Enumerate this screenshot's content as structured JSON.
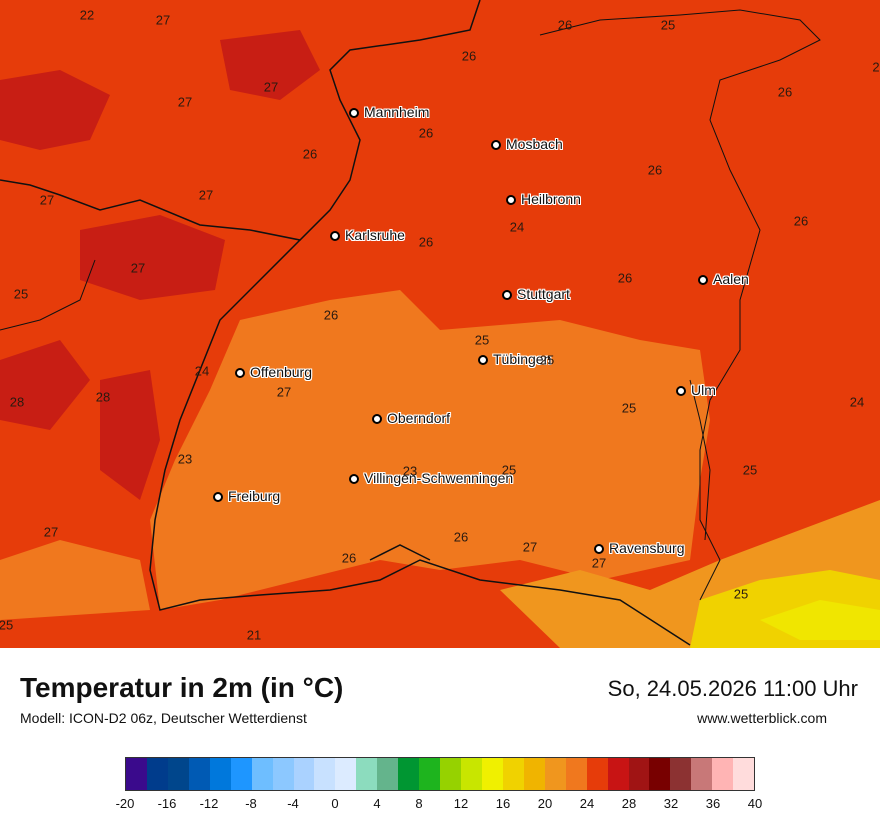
{
  "map": {
    "cities": [
      {
        "name": "Mannheim"
      },
      {
        "name": "Mosbach"
      },
      {
        "name": "Heilbronn"
      },
      {
        "name": "Karlsruhe"
      },
      {
        "name": "Stuttgart"
      },
      {
        "name": "Aalen"
      },
      {
        "name": "Tübingen"
      },
      {
        "name": "Offenburg"
      },
      {
        "name": "Ulm"
      },
      {
        "name": "Oberndorf"
      },
      {
        "name": "Villingen-Schwenningen"
      },
      {
        "name": "Freiburg"
      },
      {
        "name": "Ravensburg"
      }
    ],
    "temperature_labels": [
      "22",
      "27",
      "26",
      "25",
      "2",
      "27",
      "27",
      "26",
      "26",
      "26",
      "26",
      "26",
      "27",
      "27",
      "24",
      "26",
      "26",
      "25",
      "27",
      "26",
      "25",
      "26",
      "25",
      "24",
      "23",
      "28",
      "28",
      "27",
      "25",
      "24",
      "23",
      "25",
      "27",
      "26",
      "26",
      "27",
      "27",
      "25",
      "21",
      "25",
      "25"
    ]
  },
  "footer": {
    "title": "Temperatur in 2m (in °C)",
    "subtitle": "Modell: ICON-D2 06z, Deutscher Wetterdienst",
    "datetime": "So, 24.05.2026 11:00 Uhr",
    "website": "www.wetterblick.com"
  },
  "legend": {
    "ticks": [
      "-20",
      "-16",
      "-12",
      "-8",
      "-4",
      "0",
      "4",
      "8",
      "12",
      "16",
      "20",
      "24",
      "28",
      "32",
      "36",
      "40"
    ],
    "colors": [
      "#3a0a8c",
      "#003c8c",
      "#00468c",
      "#005ab4",
      "#0078dc",
      "#1e96ff",
      "#6ebeff",
      "#8cc8ff",
      "#aad2ff",
      "#c8e1ff",
      "#dcebff",
      "#8cdcbe",
      "#64b48c",
      "#009632",
      "#1eb41e",
      "#96d200",
      "#c8e600",
      "#f0f000",
      "#f0d200",
      "#f0b400",
      "#f0961e",
      "#f0781e",
      "#e63c0a",
      "#c81414",
      "#a01414",
      "#780000",
      "#8c3232",
      "#c87878",
      "#ffb4b4",
      "#ffdcdc"
    ]
  }
}
